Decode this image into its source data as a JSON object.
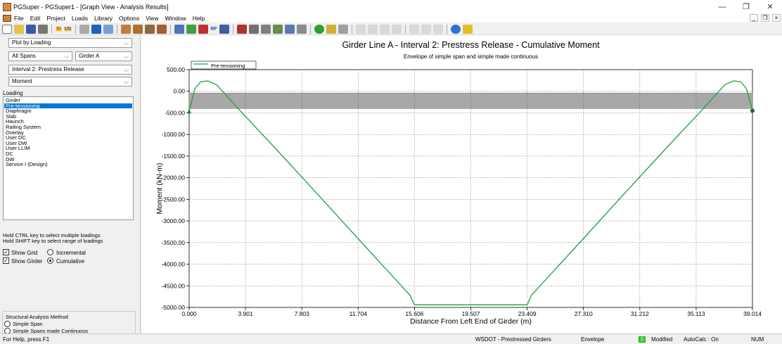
{
  "window": {
    "title": "PGSuper - PGSuper1 - [Graph View - Analysis Results]",
    "controls": {
      "minimize": "—",
      "maximize": "❐",
      "close": "✕"
    }
  },
  "menubar": {
    "items": [
      "File",
      "Edit",
      "Project",
      "Loads",
      "Library",
      "Options",
      "View",
      "Window",
      "Help"
    ],
    "mdi_controls": {
      "minimize": "_",
      "restore": "❐",
      "close": "×"
    }
  },
  "toolbar": {
    "si_label": "SI",
    "us_label": "US",
    "rf_label": "RF"
  },
  "sidebar": {
    "plot_mode": "Plot by Loading",
    "span": "All Spans",
    "girder": "Girder A",
    "interval": "Interval 2: Prestress Release",
    "action": "Moment",
    "loading_label": "Loading",
    "loadings": [
      "Girder",
      "Pre-tensioning",
      "Diaphragm",
      "Slab",
      "Haunch",
      "Railing System",
      "Overlay",
      "User DC",
      "User DW",
      "User LLIM",
      "DC",
      "DW",
      "Service I (Design)"
    ],
    "selected_loading": "Pre-tensioning",
    "hint_line1": "Hold CTRL key to select multiple loadings",
    "hint_line2": "Hold SHIFT key to select range of loadings",
    "show_grid_label": "Show Grid",
    "show_girder_label": "Show Girder",
    "incremental_label": "Incremental",
    "cumulative_label": "Cumulative",
    "show_grid_checked": true,
    "show_girder_checked": true,
    "incremental_selected": false,
    "cumulative_selected": true,
    "method_title": "Structural Analysis Method",
    "method_simple": "Simple Span",
    "method_continuous": "Simple Spans made Continuous"
  },
  "statusbar": {
    "help": "For Help, press F1",
    "library": "WSDOT - Prestressed Girders",
    "mode": "Envelope",
    "modified_count": "0",
    "modified_label": "Modified",
    "autocalc": "AutoCalc : On",
    "num": "NUM"
  },
  "chart_data": {
    "type": "line",
    "title": "Girder Line A - Interval 2: Prestress Release - Cumulative Moment",
    "subtitle": "Envelope of simple span and simple made continuous",
    "xlabel": "Distance From Left End of Girder (m)",
    "ylabel": "Moment (kN-m)",
    "xlim": [
      0,
      39.014
    ],
    "ylim": [
      -5000,
      500
    ],
    "xticks": [
      "0.000",
      "3.901",
      "7.803",
      "11.704",
      "15.606",
      "19.507",
      "23.409",
      "27.310",
      "31.212",
      "35.113",
      "39.014"
    ],
    "yticks": [
      "500.00",
      "0.00",
      "-500.00",
      "-1000.00",
      "-1500.00",
      "-2000.00",
      "-2500.00",
      "-3000.00",
      "-3500.00",
      "-4000.00",
      "-4500.00",
      "-5000.00"
    ],
    "grid": true,
    "legend_position": "top-left",
    "girder_band": {
      "y_top": -40,
      "y_bottom": -400
    },
    "supports_y": -450,
    "series": [
      {
        "name": "Pre-tensioning",
        "color": "#20a040",
        "x": [
          0.0,
          0.4,
          0.8,
          1.3,
          1.9,
          3.5,
          6.0,
          9.0,
          12.0,
          15.3,
          15.606,
          23.409,
          23.7,
          27.0,
          30.0,
          33.0,
          35.5,
          37.1,
          37.7,
          38.2,
          38.6,
          39.014
        ],
        "y": [
          -450,
          60,
          220,
          240,
          150,
          -440,
          -1330,
          -2420,
          -3520,
          -4720,
          -4940,
          -4940,
          -4720,
          -3520,
          -2420,
          -1330,
          -440,
          150,
          240,
          220,
          60,
          -450
        ]
      }
    ]
  }
}
